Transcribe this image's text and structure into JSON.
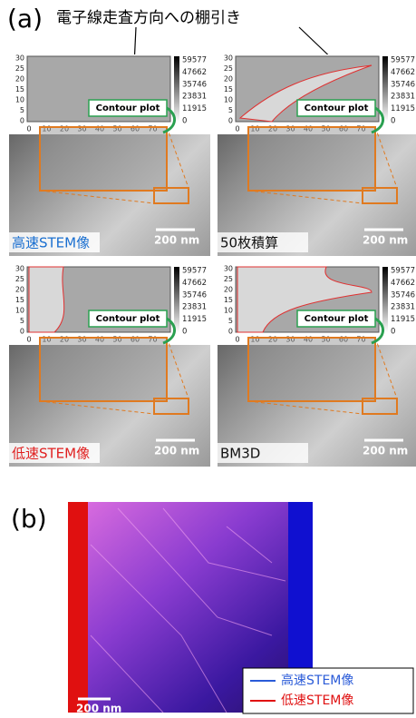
{
  "panel_a": {
    "label": "(a)",
    "annotation": "電子線走査方向への棚引き",
    "contour_y_ticks": [
      30,
      25,
      20,
      15,
      10,
      5,
      0
    ],
    "contour_x_ticks": [
      0,
      10,
      20,
      30,
      40,
      50,
      60,
      70
    ],
    "colorbar_ticks": [
      59577,
      47662,
      35746,
      23831,
      11915,
      0
    ],
    "contour_label": "Contour plot",
    "panels": [
      {
        "label": "高速STEM像",
        "scale_bar": "200 nm"
      },
      {
        "label": "50枚積算",
        "scale_bar": "200 nm"
      },
      {
        "label": "低速STEM像",
        "scale_bar": "200 nm"
      },
      {
        "label": "BM3D",
        "scale_bar": "200 nm"
      }
    ]
  },
  "panel_b": {
    "label": "(b)",
    "scale_bar": "200 nm",
    "legend": [
      "高速STEM像",
      "低速STEM像"
    ]
  }
}
